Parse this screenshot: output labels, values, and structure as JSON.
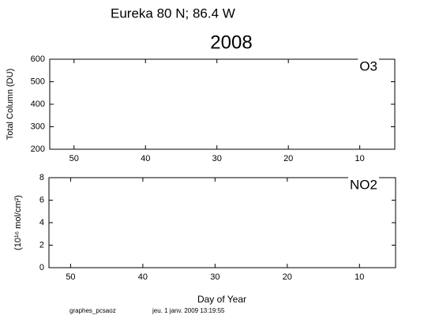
{
  "chart_data": [
    {
      "type": "line",
      "title": "Eureka  80 N; 86.4 W",
      "subtitle": "2008",
      "panel_label": "O3",
      "ylabel": "Total Column  (DU)",
      "series": [],
      "xlim": [
        53.4,
        5.1
      ],
      "xticks": [
        50,
        40,
        30,
        20,
        10
      ],
      "ylim": [
        200,
        600
      ],
      "yticks": [
        200,
        300,
        400,
        500,
        600
      ]
    },
    {
      "type": "line",
      "panel_label": "NO2",
      "ylabel": "(10¹⁶ mol/cm²)",
      "xlabel": "Day of Year",
      "series": [],
      "xlim": [
        53,
        5
      ],
      "xticks": [
        50,
        40,
        30,
        20,
        10
      ],
      "ylim": [
        0,
        8
      ],
      "yticks": [
        0,
        2,
        4,
        6,
        8
      ]
    }
  ],
  "footer": {
    "left": "graphes_pcsaoz",
    "right": "jeu. 1 janv. 2009 13:19:55"
  }
}
